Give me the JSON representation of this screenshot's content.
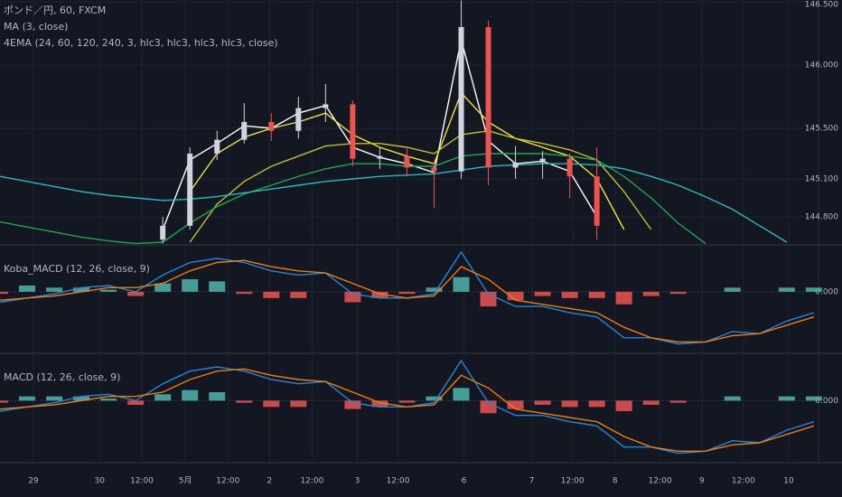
{
  "chart_data": [
    {
      "type": "candlestick",
      "title": "ポンド／円, 60, FXCM",
      "indicator_labels": [
        "MA (3, close)",
        "4EMA (24, 60, 120, 240, 3, hlc3, hlc3, hlc3, hlc3, close)"
      ],
      "x": [
        0,
        1,
        2,
        3,
        4,
        5,
        6,
        7,
        8,
        9,
        10,
        11,
        12,
        13,
        14,
        15,
        16,
        17,
        18,
        19,
        20,
        21,
        22,
        23,
        24,
        25,
        26,
        27,
        28,
        29,
        30
      ],
      "xlim": [
        0,
        30.17
      ],
      "open": [
        null,
        null,
        null,
        null,
        null,
        null,
        144.62,
        144.73,
        145.3,
        145.41,
        145.55,
        145.48,
        145.66,
        145.69,
        145.26,
        145.28,
        145.19,
        145.16,
        146.3,
        145.19,
        145.23,
        145.26,
        145.12,
        null,
        null,
        null,
        null,
        null,
        null,
        null,
        null
      ],
      "high": [
        null,
        null,
        null,
        null,
        null,
        null,
        144.8,
        145.35,
        145.48,
        145.7,
        145.62,
        145.75,
        145.85,
        145.72,
        145.35,
        145.34,
        145.24,
        146.51,
        146.35,
        145.36,
        145.32,
        145.3,
        145.35,
        null,
        null,
        null,
        null,
        null,
        null,
        null,
        null
      ],
      "low": [
        null,
        null,
        null,
        null,
        null,
        null,
        144.59,
        144.7,
        145.25,
        145.38,
        145.4,
        145.42,
        145.55,
        145.2,
        145.18,
        145.12,
        144.87,
        145.1,
        145.05,
        145.1,
        145.1,
        144.95,
        144.62,
        null,
        null,
        null,
        null,
        null,
        null,
        null,
        null
      ],
      "close": [
        null,
        null,
        null,
        null,
        null,
        null,
        144.73,
        145.3,
        145.41,
        145.55,
        145.48,
        145.66,
        145.69,
        145.26,
        145.28,
        145.19,
        145.16,
        146.3,
        145.19,
        145.23,
        145.26,
        145.12,
        144.73,
        null,
        null,
        null,
        null,
        null,
        null,
        null,
        null
      ],
      "up_color": "#d1d4dc",
      "down_color": "#ef5350",
      "series": [
        {
          "color": "#ffffff",
          "values": [
            null,
            null,
            null,
            null,
            null,
            null,
            144.7,
            145.25,
            145.38,
            145.52,
            145.5,
            145.62,
            145.68,
            145.35,
            145.27,
            145.22,
            145.15,
            146.2,
            145.4,
            145.22,
            145.24,
            145.16,
            144.8,
            null,
            null,
            null,
            null,
            null,
            null,
            null,
            null
          ]
        },
        {
          "color": "#f2e33c",
          "values": [
            null,
            null,
            null,
            null,
            null,
            null,
            null,
            145.0,
            145.3,
            145.43,
            145.5,
            145.55,
            145.62,
            145.45,
            145.35,
            145.28,
            145.22,
            145.78,
            145.55,
            145.42,
            145.35,
            145.28,
            145.1,
            144.7,
            null,
            null,
            null,
            null,
            null,
            null,
            null
          ]
        },
        {
          "color": "#c3c02a",
          "values": [
            null,
            null,
            null,
            null,
            null,
            null,
            null,
            144.6,
            144.9,
            145.08,
            145.2,
            145.28,
            145.36,
            145.38,
            145.38,
            145.35,
            145.3,
            145.45,
            145.48,
            145.42,
            145.38,
            145.33,
            145.25,
            145.0,
            144.7,
            null,
            null,
            null,
            null,
            null,
            null
          ]
        },
        {
          "color": "#22a64a",
          "values": [
            144.76,
            144.72,
            144.68,
            144.64,
            144.61,
            144.59,
            144.6,
            144.75,
            144.88,
            144.98,
            145.05,
            145.12,
            145.18,
            145.22,
            145.22,
            145.2,
            145.2,
            145.28,
            145.3,
            145.3,
            145.3,
            145.28,
            145.25,
            145.12,
            144.95,
            144.75,
            144.59,
            null,
            null,
            null,
            null
          ]
        },
        {
          "color": "#2bb8bf",
          "values": [
            145.12,
            145.08,
            145.04,
            145.0,
            144.97,
            144.95,
            144.93,
            144.94,
            144.96,
            144.99,
            145.02,
            145.05,
            145.08,
            145.1,
            145.12,
            145.13,
            145.14,
            145.17,
            145.2,
            145.21,
            145.22,
            145.22,
            145.21,
            145.18,
            145.12,
            145.05,
            144.96,
            144.86,
            144.73,
            144.6,
            null
          ]
        }
      ],
      "ylim": [
        144.586,
        146.514
      ],
      "yticks": [
        {
          "value": 146.5,
          "label": "146.500"
        },
        {
          "value": 146.0,
          "label": "146.000"
        },
        {
          "value": 145.5,
          "label": "145.500"
        },
        {
          "value": 145.1,
          "label": "145.100"
        },
        {
          "value": 144.8,
          "label": "144.800"
        }
      ]
    },
    {
      "type": "macd",
      "title": "Koba_MACD (12, 26, close, 9)",
      "x": [
        0,
        1,
        2,
        3,
        4,
        5,
        6,
        7,
        8,
        9,
        10,
        11,
        12,
        13,
        14,
        15,
        16,
        17,
        18,
        19,
        20,
        21,
        22,
        23,
        24,
        25,
        26,
        27,
        28,
        29,
        30
      ],
      "xlim": [
        0,
        30.17
      ],
      "histogram": [
        -0.01,
        0.03,
        0.02,
        0.02,
        0.01,
        -0.02,
        0.04,
        0.06,
        0.05,
        -0.01,
        -0.03,
        -0.03,
        0.0,
        -0.05,
        -0.03,
        -0.01,
        0.02,
        0.07,
        -0.07,
        -0.04,
        -0.02,
        -0.03,
        -0.03,
        -0.06,
        -0.02,
        -0.01,
        0.0,
        0.02,
        0.0,
        0.02,
        0.02
      ],
      "up_color": "#4db6ac",
      "down_color": "#ef5350",
      "series": [
        {
          "color": "#1e88e5",
          "values": [
            -0.05,
            -0.03,
            -0.01,
            0.02,
            0.03,
            0.0,
            0.08,
            0.14,
            0.16,
            0.14,
            0.1,
            0.08,
            0.09,
            -0.01,
            -0.03,
            -0.03,
            -0.01,
            0.19,
            -0.01,
            -0.07,
            -0.07,
            -0.1,
            -0.12,
            -0.22,
            -0.22,
            -0.25,
            -0.24,
            -0.19,
            -0.2,
            -0.14,
            -0.1
          ]
        },
        {
          "color": "#f57c00",
          "values": [
            -0.04,
            -0.03,
            -0.02,
            0.0,
            0.02,
            0.02,
            0.04,
            0.1,
            0.14,
            0.15,
            0.12,
            0.1,
            0.09,
            0.04,
            -0.01,
            -0.03,
            -0.02,
            0.12,
            0.06,
            -0.04,
            -0.06,
            -0.08,
            -0.1,
            -0.17,
            -0.22,
            -0.24,
            -0.24,
            -0.21,
            -0.2,
            -0.16,
            -0.12
          ]
        }
      ],
      "ylim": [
        -0.29,
        0.22
      ],
      "yticks": [
        {
          "value": 0,
          "label": "0.000"
        }
      ]
    },
    {
      "type": "macd",
      "title": "MACD (12, 26, close, 9)",
      "x": [
        0,
        1,
        2,
        3,
        4,
        5,
        6,
        7,
        8,
        9,
        10,
        11,
        12,
        13,
        14,
        15,
        16,
        17,
        18,
        19,
        20,
        21,
        22,
        23,
        24,
        25,
        26,
        27,
        28,
        29,
        30
      ],
      "xlim": [
        0,
        30.17
      ],
      "histogram": [
        -0.01,
        0.02,
        0.02,
        0.02,
        0.01,
        -0.02,
        0.03,
        0.05,
        0.04,
        -0.01,
        -0.03,
        -0.03,
        0.0,
        -0.04,
        -0.03,
        -0.01,
        0.02,
        0.06,
        -0.06,
        -0.04,
        -0.02,
        -0.03,
        -0.03,
        -0.05,
        -0.02,
        -0.01,
        0.0,
        0.02,
        0.0,
        0.02,
        0.02
      ],
      "up_color": "#4db6ac",
      "down_color": "#ef5350",
      "series": [
        {
          "color": "#1e88e5",
          "values": [
            -0.05,
            -0.03,
            -0.01,
            0.02,
            0.03,
            0.0,
            0.08,
            0.14,
            0.16,
            0.14,
            0.1,
            0.08,
            0.09,
            -0.01,
            -0.03,
            -0.03,
            -0.01,
            0.19,
            -0.01,
            -0.07,
            -0.07,
            -0.1,
            -0.12,
            -0.22,
            -0.22,
            -0.25,
            -0.24,
            -0.19,
            -0.2,
            -0.14,
            -0.1
          ]
        },
        {
          "color": "#f57c00",
          "values": [
            -0.04,
            -0.03,
            -0.02,
            0.0,
            0.02,
            0.02,
            0.04,
            0.1,
            0.14,
            0.15,
            0.12,
            0.1,
            0.09,
            0.04,
            -0.01,
            -0.03,
            -0.02,
            0.12,
            0.06,
            -0.04,
            -0.06,
            -0.08,
            -0.1,
            -0.17,
            -0.22,
            -0.24,
            -0.24,
            -0.21,
            -0.2,
            -0.16,
            -0.12
          ]
        }
      ],
      "ylim": [
        -0.29,
        0.22
      ],
      "yticks": [
        {
          "value": 0,
          "label": "0.000"
        }
      ],
      "xticks": [
        {
          "value": 1.23,
          "label": "29"
        },
        {
          "value": 3.67,
          "label": "30"
        },
        {
          "value": 5.23,
          "label": "12:00"
        },
        {
          "value": 6.83,
          "label": "5月"
        },
        {
          "value": 8.4,
          "label": "12:00"
        },
        {
          "value": 9.93,
          "label": "2"
        },
        {
          "value": 11.5,
          "label": "12:00"
        },
        {
          "value": 13.17,
          "label": "3"
        },
        {
          "value": 14.67,
          "label": "12:00"
        },
        {
          "value": 17.1,
          "label": "6"
        },
        {
          "value": 19.6,
          "label": "7"
        },
        {
          "value": 21.1,
          "label": "12:00"
        },
        {
          "value": 22.67,
          "label": "8"
        },
        {
          "value": 24.33,
          "label": "12:00"
        },
        {
          "value": 25.87,
          "label": "9"
        },
        {
          "value": 27.4,
          "label": "12:00"
        },
        {
          "value": 29.07,
          "label": "10"
        }
      ]
    }
  ]
}
